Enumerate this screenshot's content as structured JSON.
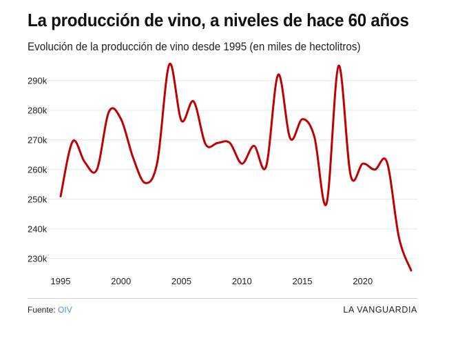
{
  "header": {
    "title": "La producción de vino, a niveles de hace 60 años",
    "subtitle": "Evolución de la producción de vino desde 1995 (en miles de hectolitros)"
  },
  "footer": {
    "source_label": "Fuente:",
    "source_link": "OIV",
    "brand": "LA VANGUARDIA"
  },
  "colors": {
    "line": "#c00000",
    "grid": "#e6e6e6",
    "link": "#5b8fc7"
  },
  "chart_data": {
    "type": "line",
    "title": "La producción de vino, a niveles de hace 60 años",
    "subtitle": "Evolución de la producción de vino desde 1995 (en miles de hectolitros)",
    "xlabel": "",
    "ylabel": "",
    "xlim": [
      1995,
      2024
    ],
    "ylim": [
      226000,
      296000
    ],
    "x_ticks": [
      1995,
      2000,
      2005,
      2010,
      2015,
      2020
    ],
    "x_tick_labels": [
      "1995",
      "2000",
      "2005",
      "2010",
      "2015",
      "2020"
    ],
    "y_ticks": [
      230000,
      240000,
      250000,
      260000,
      270000,
      280000,
      290000
    ],
    "y_tick_labels": [
      "230k",
      "240k",
      "250k",
      "260k",
      "270k",
      "280k",
      "290k"
    ],
    "grid": true,
    "legend": "none",
    "x": [
      1995,
      1996,
      1997,
      1998,
      1999,
      2000,
      2001,
      2002,
      2003,
      2004,
      2005,
      2006,
      2007,
      2008,
      2009,
      2010,
      2011,
      2012,
      2013,
      2014,
      2015,
      2016,
      2017,
      2018,
      2019,
      2020,
      2021,
      2022,
      2023,
      2024
    ],
    "series": [
      {
        "values": [
          251000,
          269500,
          262500,
          260000,
          279500,
          277000,
          264000,
          255500,
          262500,
          295500,
          276500,
          283000,
          268500,
          269000,
          269000,
          262000,
          268000,
          261000,
          292000,
          270500,
          277000,
          271000,
          248500,
          295000,
          258000,
          262000,
          260000,
          262500,
          237000,
          226000
        ]
      }
    ]
  }
}
